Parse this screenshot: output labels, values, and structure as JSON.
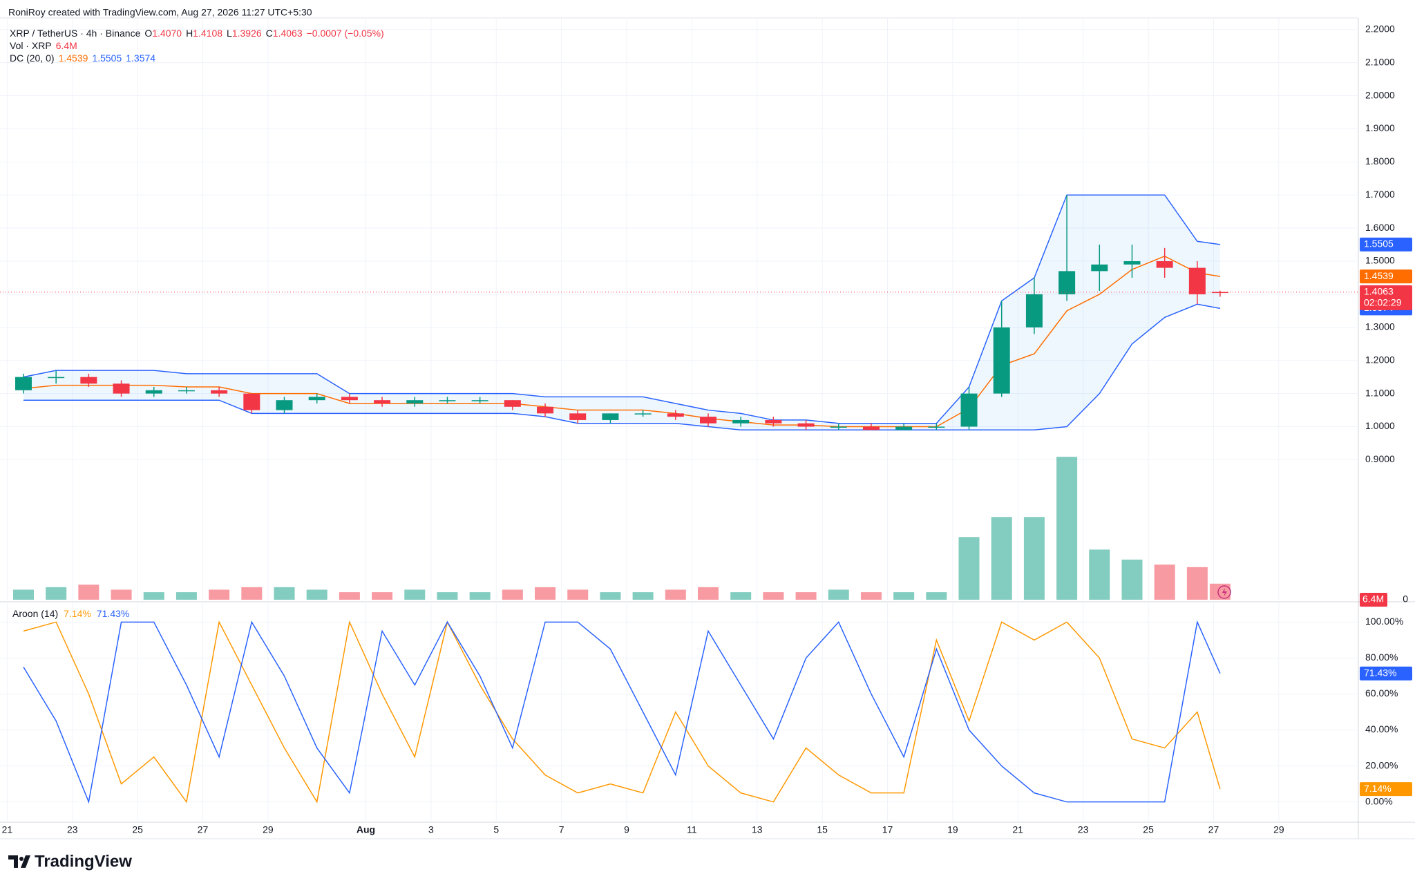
{
  "header": {
    "credit": "RoniRoy created with TradingView.com, Aug 27, 2026 11:27 UTC+5:30",
    "symbol": "XRP / TetherUS · 4h · Binance",
    "ohlc": [
      {
        "key": "O",
        "value": "1.4070"
      },
      {
        "key": "H",
        "value": "1.4108"
      },
      {
        "key": "L",
        "value": "1.3926"
      },
      {
        "key": "C",
        "value": "1.4063"
      }
    ],
    "change": "−0.0007 (−0.05%)",
    "value_color": "#f23645",
    "logo": "TradingView"
  },
  "chart_data": [
    {
      "type": "candlestick",
      "x": [
        0.5,
        1.5,
        2.5,
        3.5,
        4.5,
        5.5,
        6.5,
        7.5,
        8.5,
        9.5,
        10.5,
        11.5,
        12.5,
        13.5,
        14.5,
        15.5,
        16.5,
        17.5,
        18.5,
        19.5,
        20.5,
        21.5,
        22.5,
        23.5,
        24.5,
        25.5,
        26.5,
        27.5,
        28.5,
        29.5,
        30.5,
        31.5,
        32.5,
        33.5,
        34.5,
        35.5,
        36.5,
        37.2
      ],
      "open": [
        1.11,
        1.15,
        1.15,
        1.13,
        1.1,
        1.11,
        1.11,
        1.1,
        1.05,
        1.08,
        1.09,
        1.08,
        1.07,
        1.08,
        1.08,
        1.08,
        1.06,
        1.04,
        1.02,
        1.04,
        1.04,
        1.03,
        1.01,
        1.02,
        1.01,
        1.0,
        1.0,
        0.99,
        1.0,
        1.0,
        1.1,
        1.3,
        1.4,
        1.47,
        1.49,
        1.5,
        1.48,
        1.407
      ],
      "high": [
        1.16,
        1.17,
        1.16,
        1.14,
        1.12,
        1.12,
        1.12,
        1.1,
        1.09,
        1.1,
        1.1,
        1.09,
        1.09,
        1.09,
        1.09,
        1.08,
        1.07,
        1.05,
        1.04,
        1.05,
        1.05,
        1.04,
        1.03,
        1.03,
        1.02,
        1.01,
        1.01,
        1.01,
        1.01,
        1.12,
        1.38,
        1.45,
        1.7,
        1.55,
        1.55,
        1.54,
        1.5,
        1.4108
      ],
      "low": [
        1.1,
        1.13,
        1.12,
        1.09,
        1.09,
        1.1,
        1.09,
        1.04,
        1.04,
        1.07,
        1.07,
        1.06,
        1.06,
        1.07,
        1.07,
        1.05,
        1.03,
        1.01,
        1.01,
        1.03,
        1.02,
        1.0,
        1.0,
        1.0,
        0.99,
        0.99,
        0.99,
        0.99,
        0.99,
        0.99,
        1.09,
        1.28,
        1.38,
        1.41,
        1.45,
        1.45,
        1.37,
        1.3926
      ],
      "close": [
        1.15,
        1.15,
        1.13,
        1.1,
        1.11,
        1.11,
        1.1,
        1.05,
        1.08,
        1.09,
        1.08,
        1.07,
        1.08,
        1.08,
        1.08,
        1.06,
        1.04,
        1.02,
        1.04,
        1.04,
        1.03,
        1.01,
        1.02,
        1.01,
        1.0,
        1.0,
        0.99,
        1.0,
        1.0,
        1.1,
        1.3,
        1.4,
        1.47,
        1.49,
        1.5,
        1.48,
        1.4,
        1.4063
      ],
      "up_color": "#089981",
      "down_color": "#f23645",
      "countdown": "02:02:29",
      "xlim": [
        -0.22,
        41.44
      ],
      "ylim": [
        0.477,
        2.235
      ],
      "yticks": [
        {
          "value": 0.9,
          "label": "0.9000"
        },
        {
          "value": 1.0,
          "label": "1.0000"
        },
        {
          "value": 1.1,
          "label": "1.1000"
        },
        {
          "value": 1.2,
          "label": "1.2000"
        },
        {
          "value": 1.3,
          "label": "1.3000"
        },
        {
          "value": 1.4,
          "label": "1.4000"
        },
        {
          "value": 1.5,
          "label": "1.5000"
        },
        {
          "value": 1.6,
          "label": "1.6000"
        },
        {
          "value": 1.7,
          "label": "1.7000"
        },
        {
          "value": 1.8,
          "label": "1.8000"
        },
        {
          "value": 1.9,
          "label": "1.9000"
        },
        {
          "value": 2.0,
          "label": "2.0000"
        },
        {
          "value": 2.1,
          "label": "2.1000"
        },
        {
          "value": 2.2,
          "label": "2.2000"
        }
      ],
      "grid": true,
      "bands": {
        "legend": "DC (20, 0)",
        "fill": "rgba(33,150,243,0.08)",
        "middle": {
          "color": "#ff6d00",
          "values": [
            1.115,
            1.125,
            1.125,
            1.125,
            1.125,
            1.12,
            1.12,
            1.1,
            1.1,
            1.1,
            1.07,
            1.07,
            1.07,
            1.07,
            1.07,
            1.07,
            1.06,
            1.05,
            1.05,
            1.05,
            1.04,
            1.025,
            1.015,
            1.005,
            1.005,
            1.0,
            1.0,
            1.0,
            1.0,
            1.055,
            1.185,
            1.22,
            1.35,
            1.4,
            1.475,
            1.515,
            1.465,
            1.4539
          ]
        },
        "upper": {
          "color": "#2962ff",
          "values": [
            1.15,
            1.17,
            1.17,
            1.17,
            1.17,
            1.16,
            1.16,
            1.16,
            1.16,
            1.16,
            1.1,
            1.1,
            1.1,
            1.1,
            1.1,
            1.1,
            1.09,
            1.09,
            1.09,
            1.09,
            1.07,
            1.05,
            1.04,
            1.02,
            1.02,
            1.01,
            1.01,
            1.01,
            1.01,
            1.12,
            1.38,
            1.45,
            1.7,
            1.7,
            1.7,
            1.7,
            1.56,
            1.5505
          ]
        },
        "lower": {
          "color": "#2962ff",
          "values": [
            1.08,
            1.08,
            1.08,
            1.08,
            1.08,
            1.08,
            1.08,
            1.04,
            1.04,
            1.04,
            1.04,
            1.04,
            1.04,
            1.04,
            1.04,
            1.04,
            1.03,
            1.01,
            1.01,
            1.01,
            1.01,
            1.0,
            0.99,
            0.99,
            0.99,
            0.99,
            0.99,
            0.99,
            0.99,
            0.99,
            0.99,
            0.99,
            1.0,
            1.1,
            1.25,
            1.33,
            1.37,
            1.3574
          ]
        }
      },
      "volume": {
        "legend": "Vol · XRP",
        "values": [
          4,
          5,
          6,
          4,
          3,
          3,
          4,
          5,
          5,
          4,
          3,
          3,
          4,
          3,
          3,
          4,
          5,
          4,
          3,
          3,
          4,
          5,
          3,
          3,
          3,
          4,
          3,
          3,
          3,
          25,
          33,
          33,
          57,
          20,
          16,
          14,
          13,
          6.4
        ],
        "last_label": "6.4M",
        "ylim": [
          0,
          232
        ],
        "yticks": [
          0
        ]
      }
    },
    {
      "type": "line",
      "title": "Aroon (14)",
      "x": [
        0.5,
        1.5,
        2.5,
        3.5,
        4.5,
        5.5,
        6.5,
        7.5,
        8.5,
        9.5,
        10.5,
        11.5,
        12.5,
        13.5,
        14.5,
        15.5,
        16.5,
        17.5,
        18.5,
        19.5,
        20.5,
        21.5,
        22.5,
        23.5,
        24.5,
        25.5,
        26.5,
        27.5,
        28.5,
        29.5,
        30.5,
        31.5,
        32.5,
        33.5,
        34.5,
        35.5,
        36.5,
        37.2
      ],
      "series": [
        {
          "color": "#ff9800",
          "last_label": "7.14%",
          "values": [
            95,
            100,
            60,
            10,
            25,
            0,
            100,
            65,
            30,
            0,
            100,
            60,
            25,
            100,
            65,
            35,
            15,
            5,
            10,
            5,
            50,
            20,
            5,
            0,
            30,
            15,
            5,
            5,
            90,
            45,
            100,
            90,
            100,
            80,
            35,
            30,
            50,
            7.14
          ]
        },
        {
          "color": "#2962ff",
          "last_label": "71.43%",
          "values": [
            75,
            45,
            0,
            100,
            100,
            65,
            25,
            100,
            70,
            30,
            5,
            95,
            65,
            100,
            70,
            30,
            100,
            100,
            85,
            50,
            15,
            95,
            65,
            35,
            80,
            100,
            60,
            25,
            85,
            40,
            20,
            5,
            0,
            0,
            0,
            0,
            100,
            71.43
          ]
        }
      ],
      "xlim": [
        -0.22,
        41.44
      ],
      "ylim": [
        -10.5,
        110.5
      ],
      "yticks": [
        {
          "value": 0,
          "label": "0.00%"
        },
        {
          "value": 20,
          "label": "20.00%"
        },
        {
          "value": 40,
          "label": "40.00%"
        },
        {
          "value": 60,
          "label": "60.00%"
        },
        {
          "value": 80,
          "label": "80.00%"
        },
        {
          "value": 100,
          "label": "100.00%"
        }
      ],
      "xticks": [
        {
          "value": 0,
          "label": "21"
        },
        {
          "value": 2,
          "label": "23"
        },
        {
          "value": 4,
          "label": "25"
        },
        {
          "value": 6,
          "label": "27"
        },
        {
          "value": 8,
          "label": "29"
        },
        {
          "value": 11,
          "label": "Aug"
        },
        {
          "value": 13,
          "label": "3"
        },
        {
          "value": 15,
          "label": "5"
        },
        {
          "value": 17,
          "label": "7"
        },
        {
          "value": 19,
          "label": "9"
        },
        {
          "value": 21,
          "label": "11"
        },
        {
          "value": 23,
          "label": "13"
        },
        {
          "value": 25,
          "label": "15"
        },
        {
          "value": 27,
          "label": "17"
        },
        {
          "value": 29,
          "label": "19"
        },
        {
          "value": 31,
          "label": "21"
        },
        {
          "value": 33,
          "label": "23"
        },
        {
          "value": 35,
          "label": "25"
        },
        {
          "value": 37,
          "label": "27"
        },
        {
          "value": 39,
          "label": "29"
        }
      ],
      "grid": true
    }
  ]
}
